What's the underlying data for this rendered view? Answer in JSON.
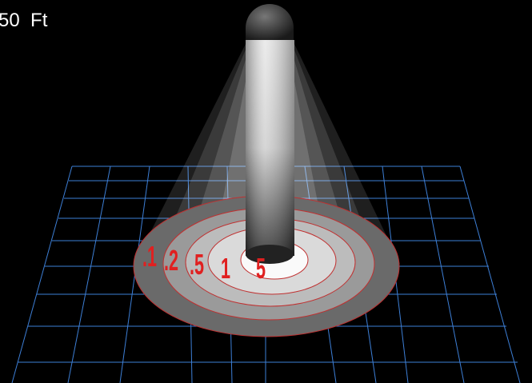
{
  "distance_label": "50  Ft",
  "contour_labels": [
    ".1",
    ".2",
    ".5",
    "1",
    "5"
  ]
}
